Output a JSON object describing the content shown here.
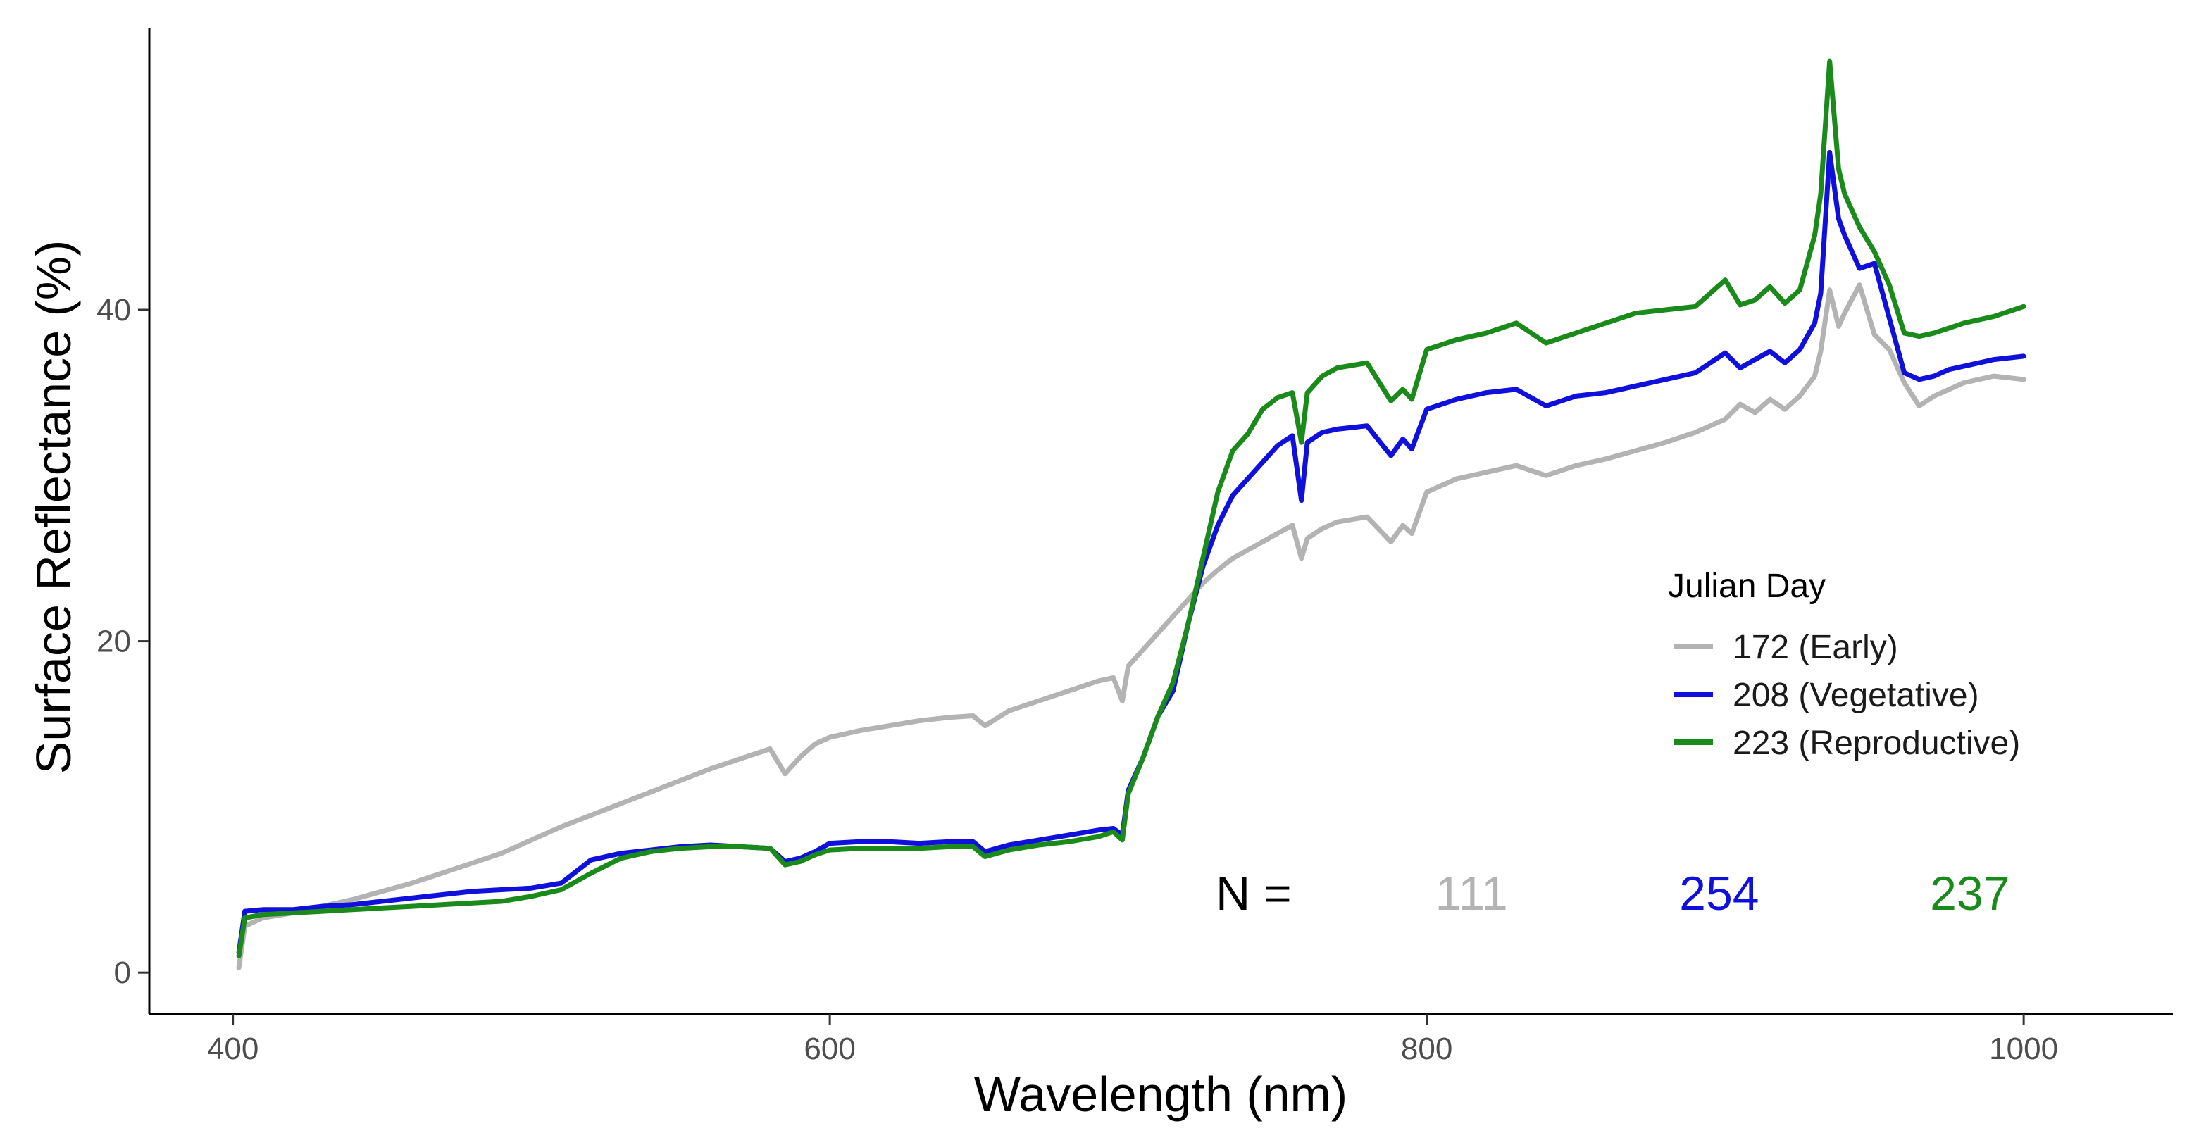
{
  "chart_data": {
    "type": "line",
    "title": "",
    "xlabel": "Wavelength (nm)",
    "ylabel": "Surface Reflectance (%)",
    "xlim": [
      372,
      1050
    ],
    "ylim": [
      -2.5,
      57
    ],
    "x_ticks": [
      {
        "value": 400,
        "label": "400"
      },
      {
        "value": 600,
        "label": "600"
      },
      {
        "value": 800,
        "label": "800"
      },
      {
        "value": 1000,
        "label": "1000"
      }
    ],
    "y_ticks": [
      {
        "value": 0,
        "label": "0"
      },
      {
        "value": 20,
        "label": "20"
      },
      {
        "value": 40,
        "label": "40"
      }
    ],
    "grid": false,
    "legend": {
      "title": "Julian Day",
      "position": "right",
      "entries": [
        {
          "label": "172 (Early)",
          "color": "#b3b3b3"
        },
        {
          "label": "208 (Vegetative)",
          "color": "#1010dd"
        },
        {
          "label": "223 (Reproductive)",
          "color": "#1a8a1a"
        }
      ]
    },
    "annotation": {
      "prefix": "N =",
      "prefix_color": "#000000",
      "counts": [
        {
          "text": "111",
          "color": "#b3b3b3",
          "x": 815
        },
        {
          "text": "254",
          "color": "#1010dd",
          "x": 898
        },
        {
          "text": "237",
          "color": "#1a8a1a",
          "x": 982
        }
      ],
      "prefix_x": 742,
      "y": 3.8
    },
    "series": [
      {
        "name": "172 (Early)",
        "color": "#b3b3b3",
        "x": [
          402,
          404,
          410,
          420,
          430,
          440,
          450,
          460,
          470,
          480,
          490,
          500,
          510,
          520,
          530,
          540,
          550,
          560,
          570,
          580,
          585,
          590,
          595,
          600,
          610,
          620,
          630,
          640,
          648,
          652,
          660,
          670,
          680,
          690,
          695,
          698,
          700,
          705,
          710,
          715,
          720,
          725,
          730,
          735,
          740,
          745,
          750,
          755,
          758,
          760,
          765,
          770,
          780,
          788,
          792,
          795,
          800,
          810,
          820,
          830,
          840,
          850,
          860,
          870,
          880,
          890,
          900,
          905,
          910,
          915,
          920,
          925,
          930,
          932,
          935,
          938,
          940,
          945,
          950,
          955,
          960,
          965,
          970,
          975,
          980,
          990,
          1000
        ],
        "y": [
          0.3,
          2.8,
          3.3,
          3.6,
          4.0,
          4.4,
          4.9,
          5.4,
          6.0,
          6.6,
          7.2,
          8.0,
          8.8,
          9.5,
          10.2,
          10.9,
          11.6,
          12.3,
          12.9,
          13.5,
          12.0,
          13.0,
          13.8,
          14.2,
          14.6,
          14.9,
          15.2,
          15.4,
          15.5,
          14.9,
          15.8,
          16.4,
          17.0,
          17.6,
          17.8,
          16.4,
          18.5,
          19.5,
          20.5,
          21.5,
          22.5,
          23.5,
          24.3,
          25.0,
          25.5,
          26.0,
          26.5,
          27.0,
          25.0,
          26.2,
          26.8,
          27.2,
          27.5,
          26.0,
          27.0,
          26.5,
          29.0,
          29.8,
          30.2,
          30.6,
          30.0,
          30.6,
          31.0,
          31.5,
          32.0,
          32.6,
          33.4,
          34.3,
          33.8,
          34.6,
          34.0,
          34.8,
          36.0,
          37.5,
          41.2,
          39.0,
          39.8,
          41.5,
          38.5,
          37.6,
          35.6,
          34.2,
          34.8,
          35.2,
          35.6,
          36.0,
          35.8
        ]
      },
      {
        "name": "208 (Vegetative)",
        "color": "#1010dd",
        "x": [
          402,
          404,
          410,
          420,
          430,
          440,
          450,
          460,
          470,
          480,
          490,
          500,
          510,
          520,
          530,
          540,
          550,
          560,
          570,
          580,
          585,
          590,
          595,
          600,
          610,
          620,
          630,
          640,
          648,
          652,
          660,
          670,
          680,
          690,
          695,
          698,
          700,
          705,
          710,
          715,
          720,
          725,
          730,
          735,
          740,
          745,
          750,
          755,
          758,
          760,
          765,
          770,
          780,
          788,
          792,
          795,
          800,
          810,
          820,
          830,
          840,
          850,
          860,
          870,
          880,
          890,
          900,
          905,
          910,
          915,
          920,
          925,
          930,
          932,
          935,
          938,
          940,
          945,
          950,
          955,
          960,
          965,
          970,
          975,
          980,
          990,
          1000
        ],
        "y": [
          1.2,
          3.7,
          3.8,
          3.8,
          4.0,
          4.1,
          4.3,
          4.5,
          4.7,
          4.9,
          5.0,
          5.1,
          5.4,
          6.8,
          7.2,
          7.4,
          7.6,
          7.7,
          7.6,
          7.5,
          6.7,
          6.9,
          7.3,
          7.8,
          7.9,
          7.9,
          7.8,
          7.9,
          7.9,
          7.3,
          7.7,
          8.0,
          8.3,
          8.6,
          8.7,
          8.3,
          11.0,
          13.0,
          15.5,
          17.0,
          21.0,
          24.5,
          27.0,
          28.8,
          29.8,
          30.8,
          31.8,
          32.4,
          28.5,
          32.0,
          32.6,
          32.8,
          33.0,
          31.2,
          32.2,
          31.6,
          34.0,
          34.6,
          35.0,
          35.2,
          34.2,
          34.8,
          35.0,
          35.4,
          35.8,
          36.2,
          37.4,
          36.5,
          37.0,
          37.5,
          36.8,
          37.6,
          39.2,
          41.0,
          49.5,
          45.5,
          44.5,
          42.5,
          42.8,
          39.5,
          36.2,
          35.8,
          36.0,
          36.4,
          36.6,
          37.0,
          37.2
        ]
      },
      {
        "name": "223 (Reproductive)",
        "color": "#1a8a1a",
        "x": [
          402,
          404,
          410,
          420,
          430,
          440,
          450,
          460,
          470,
          480,
          490,
          500,
          510,
          520,
          530,
          540,
          550,
          560,
          570,
          580,
          585,
          590,
          595,
          600,
          610,
          620,
          630,
          640,
          648,
          652,
          660,
          670,
          680,
          690,
          695,
          698,
          700,
          705,
          710,
          715,
          720,
          725,
          730,
          735,
          740,
          745,
          750,
          755,
          758,
          760,
          765,
          770,
          780,
          788,
          792,
          795,
          800,
          810,
          820,
          830,
          840,
          850,
          860,
          870,
          880,
          890,
          900,
          905,
          910,
          915,
          920,
          925,
          930,
          932,
          935,
          938,
          940,
          945,
          950,
          955,
          960,
          965,
          970,
          975,
          980,
          990,
          1000
        ],
        "y": [
          1.0,
          3.3,
          3.5,
          3.6,
          3.7,
          3.8,
          3.9,
          4.0,
          4.1,
          4.2,
          4.3,
          4.6,
          5.0,
          6.0,
          6.9,
          7.3,
          7.5,
          7.6,
          7.6,
          7.5,
          6.5,
          6.7,
          7.1,
          7.4,
          7.5,
          7.5,
          7.5,
          7.6,
          7.6,
          7.0,
          7.4,
          7.7,
          7.9,
          8.2,
          8.5,
          8.0,
          10.8,
          13.0,
          15.5,
          17.5,
          21.0,
          25.0,
          29.0,
          31.5,
          32.5,
          34.0,
          34.7,
          35.0,
          32.0,
          35.0,
          36.0,
          36.5,
          36.8,
          34.5,
          35.2,
          34.6,
          37.6,
          38.2,
          38.6,
          39.2,
          38.0,
          38.6,
          39.2,
          39.8,
          40.0,
          40.2,
          41.8,
          40.3,
          40.6,
          41.4,
          40.4,
          41.2,
          44.5,
          47.0,
          55.0,
          48.5,
          47.0,
          45.0,
          43.5,
          41.5,
          38.6,
          38.4,
          38.6,
          38.9,
          39.2,
          39.6,
          40.2
        ]
      }
    ]
  }
}
